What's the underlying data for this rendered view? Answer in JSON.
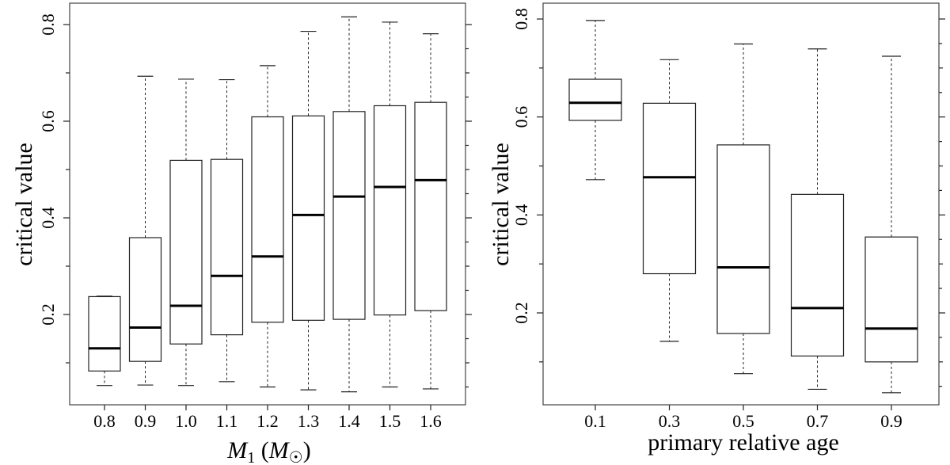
{
  "chart_data": [
    {
      "type": "box",
      "xlabel": "",
      "ylabel": "critical value",
      "ylim": [
        0.0,
        0.83
      ],
      "yticks": [
        0.2,
        0.4,
        0.6,
        0.8
      ],
      "ytick_labels": [
        "0.2",
        "0.4",
        "0.6",
        "0.8"
      ],
      "categories": [
        "0.8",
        "0.9",
        "1.0",
        "1.1",
        "1.2",
        "1.3",
        "1.4",
        "1.5",
        "1.6"
      ],
      "boxes": [
        {
          "min": 0.053,
          "q1": 0.083,
          "median": 0.13,
          "q3": 0.237,
          "max": 0.238
        },
        {
          "min": 0.054,
          "q1": 0.103,
          "median": 0.173,
          "q3": 0.359,
          "max": 0.693
        },
        {
          "min": 0.053,
          "q1": 0.139,
          "median": 0.218,
          "q3": 0.519,
          "max": 0.687
        },
        {
          "min": 0.061,
          "q1": 0.158,
          "median": 0.28,
          "q3": 0.521,
          "max": 0.686
        },
        {
          "min": 0.05,
          "q1": 0.184,
          "median": 0.32,
          "q3": 0.609,
          "max": 0.715
        },
        {
          "min": 0.044,
          "q1": 0.188,
          "median": 0.406,
          "q3": 0.611,
          "max": 0.786
        },
        {
          "min": 0.04,
          "q1": 0.19,
          "median": 0.444,
          "q3": 0.62,
          "max": 0.816
        },
        {
          "min": 0.05,
          "q1": 0.199,
          "median": 0.464,
          "q3": 0.632,
          "max": 0.805
        },
        {
          "min": 0.046,
          "q1": 0.208,
          "median": 0.478,
          "q3": 0.639,
          "max": 0.781
        }
      ]
    },
    {
      "type": "box",
      "xlabel": "primary relative age",
      "ylabel": "critical value",
      "ylim": [
        0.0,
        0.83
      ],
      "yticks": [
        0.2,
        0.4,
        0.6,
        0.8
      ],
      "ytick_labels": [
        "0.2",
        "0.4",
        "0.6",
        "0.8"
      ],
      "categories": [
        "0.1",
        "0.3",
        "0.5",
        "0.7",
        "0.9"
      ],
      "boxes": [
        {
          "min": 0.472,
          "q1": 0.593,
          "median": 0.629,
          "q3": 0.677,
          "max": 0.797
        },
        {
          "min": 0.142,
          "q1": 0.28,
          "median": 0.477,
          "q3": 0.628,
          "max": 0.717
        },
        {
          "min": 0.076,
          "q1": 0.158,
          "median": 0.293,
          "q3": 0.543,
          "max": 0.749
        },
        {
          "min": 0.044,
          "q1": 0.112,
          "median": 0.21,
          "q3": 0.442,
          "max": 0.739
        },
        {
          "min": 0.037,
          "q1": 0.1,
          "median": 0.168,
          "q3": 0.355,
          "max": 0.724
        }
      ]
    }
  ]
}
